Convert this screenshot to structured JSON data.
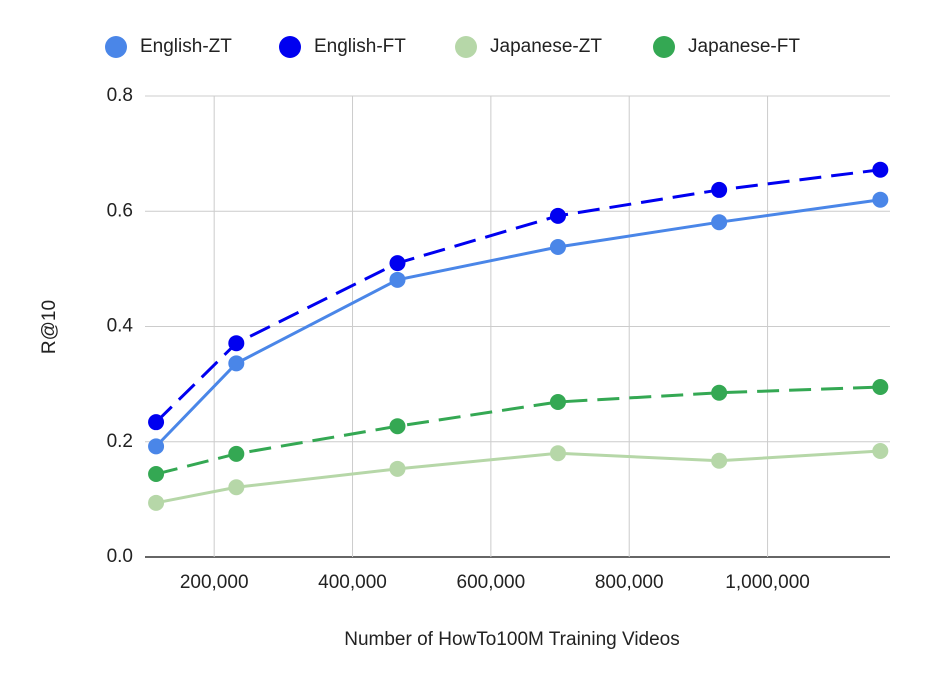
{
  "chart_data": {
    "type": "line",
    "x_label": "Number of HowTo100M Training Videos",
    "y_label": "R@10",
    "x": [
      116000,
      232000,
      465000,
      697000,
      930000,
      1163000
    ],
    "series": [
      {
        "name": "English-ZT",
        "color": "#4a86e8",
        "dashed": false,
        "values": [
          0.192,
          0.336,
          0.481,
          0.538,
          0.581,
          0.62
        ]
      },
      {
        "name": "English-FT",
        "color": "#0000f0",
        "dashed": true,
        "values": [
          0.234,
          0.371,
          0.51,
          0.592,
          0.637,
          0.672
        ]
      },
      {
        "name": "Japanese-ZT",
        "color": "#b6d7a8",
        "dashed": false,
        "values": [
          0.094,
          0.121,
          0.153,
          0.18,
          0.167,
          0.184
        ]
      },
      {
        "name": "Japanese-FT",
        "color": "#34a853",
        "dashed": true,
        "values": [
          0.144,
          0.179,
          0.227,
          0.269,
          0.285,
          0.295
        ]
      }
    ],
    "xlim": [
      100000,
      1177000
    ],
    "ylim": [
      0,
      0.8
    ],
    "xticks": [
      {
        "value": 200000,
        "label": "200,000"
      },
      {
        "value": 400000,
        "label": "400,000"
      },
      {
        "value": 600000,
        "label": "600,000"
      },
      {
        "value": 800000,
        "label": "800,000"
      },
      {
        "value": 1000000,
        "label": "1,000,000"
      }
    ],
    "yticks": [
      {
        "value": 0,
        "label": "0.0"
      },
      0.2,
      0.4,
      0.6,
      0.8
    ],
    "grid": true,
    "legend": "top"
  }
}
